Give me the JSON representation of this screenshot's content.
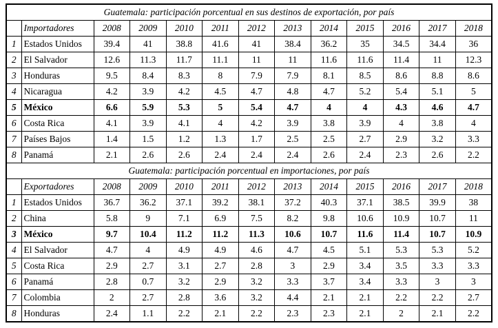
{
  "tables": [
    {
      "title": "Guatemala: participación porcentual en sus destinos de exportación, por país",
      "header_label": "Importadores",
      "years": [
        "2008",
        "2009",
        "2010",
        "2011",
        "2012",
        "2013",
        "2014",
        "2015",
        "2016",
        "2017",
        "2018"
      ],
      "rows": [
        {
          "rank": "1",
          "country": "Estados Unidos",
          "bold": false,
          "values": [
            "39.4",
            "41",
            "38.8",
            "41.6",
            "41",
            "38.4",
            "36.2",
            "35",
            "34.5",
            "34.4",
            "36"
          ]
        },
        {
          "rank": "2",
          "country": "El Salvador",
          "bold": false,
          "values": [
            "12.6",
            "11.3",
            "11.7",
            "11.1",
            "11",
            "11",
            "11.6",
            "11.6",
            "11.4",
            "11",
            "12.3"
          ]
        },
        {
          "rank": "3",
          "country": "Honduras",
          "bold": false,
          "values": [
            "9.5",
            "8.4",
            "8.3",
            "8",
            "7.9",
            "7.9",
            "8.1",
            "8.5",
            "8.6",
            "8.8",
            "8.6"
          ]
        },
        {
          "rank": "4",
          "country": "Nicaragua",
          "bold": false,
          "values": [
            "4.2",
            "3.9",
            "4.2",
            "4.5",
            "4.7",
            "4.8",
            "4.7",
            "5.2",
            "5.4",
            "5.1",
            "5"
          ]
        },
        {
          "rank": "5",
          "country": "México",
          "bold": true,
          "values": [
            "6.6",
            "5.9",
            "5.3",
            "5",
            "5.4",
            "4.7",
            "4",
            "4",
            "4.3",
            "4.6",
            "4.7"
          ]
        },
        {
          "rank": "6",
          "country": "Costa Rica",
          "bold": false,
          "values": [
            "4.1",
            "3.9",
            "4.1",
            "4",
            "4.2",
            "3.9",
            "3.8",
            "3.9",
            "4",
            "3.8",
            "4"
          ]
        },
        {
          "rank": "7",
          "country": "Países Bajos",
          "bold": false,
          "values": [
            "1.4",
            "1.5",
            "1.2",
            "1.3",
            "1.7",
            "2.5",
            "2.5",
            "2.7",
            "2.9",
            "3.2",
            "3.3"
          ]
        },
        {
          "rank": "8",
          "country": "Panamá",
          "bold": false,
          "values": [
            "2.1",
            "2.6",
            "2.6",
            "2.4",
            "2.4",
            "2.4",
            "2.6",
            "2.4",
            "2.3",
            "2.6",
            "2.2"
          ]
        }
      ]
    },
    {
      "title": "Guatemala: participación porcentual en importaciones, por país",
      "header_label": "Exportadores",
      "years": [
        "2008",
        "2009",
        "2010",
        "2011",
        "2012",
        "2013",
        "2014",
        "2015",
        "2016",
        "2017",
        "2018"
      ],
      "rows": [
        {
          "rank": "1",
          "country": "Estados Unidos",
          "bold": false,
          "values": [
            "36.7",
            "36.2",
            "37.1",
            "39.2",
            "38.1",
            "37.2",
            "40.3",
            "37.1",
            "38.5",
            "39.9",
            "38"
          ]
        },
        {
          "rank": "2",
          "country": "China",
          "bold": false,
          "values": [
            "5.8",
            "9",
            "7.1",
            "6.9",
            "7.5",
            "8.2",
            "9.8",
            "10.6",
            "10.9",
            "10.7",
            "11"
          ]
        },
        {
          "rank": "3",
          "country": "México",
          "bold": true,
          "values": [
            "9.7",
            "10.4",
            "11.2",
            "11.2",
            "11.3",
            "10.6",
            "10.7",
            "11.6",
            "11.4",
            "10.7",
            "10.9"
          ]
        },
        {
          "rank": "4",
          "country": "El Salvador",
          "bold": false,
          "values": [
            "4.7",
            "4",
            "4.9",
            "4.9",
            "4.6",
            "4.7",
            "4.5",
            "5.1",
            "5.3",
            "5.3",
            "5.2"
          ]
        },
        {
          "rank": "5",
          "country": "Costa Rica",
          "bold": false,
          "values": [
            "2.9",
            "2.7",
            "3.1",
            "2.7",
            "2.8",
            "3",
            "2.9",
            "3.4",
            "3.5",
            "3.3",
            "3.3"
          ]
        },
        {
          "rank": "6",
          "country": "Panamá",
          "bold": false,
          "values": [
            "2.8",
            "0.7",
            "3.2",
            "2.9",
            "3.2",
            "3.3",
            "3.7",
            "3.4",
            "3.3",
            "3",
            "3"
          ]
        },
        {
          "rank": "7",
          "country": "Colombia",
          "bold": false,
          "values": [
            "2",
            "2.7",
            "2.8",
            "3.6",
            "3.2",
            "4.4",
            "2.1",
            "2.1",
            "2.2",
            "2.2",
            "2.7"
          ]
        },
        {
          "rank": "8",
          "country": "Honduras",
          "bold": false,
          "values": [
            "2.4",
            "1.1",
            "2.2",
            "2.1",
            "2.2",
            "2.3",
            "2.3",
            "2.1",
            "2",
            "2.1",
            "2.2"
          ]
        }
      ]
    }
  ]
}
